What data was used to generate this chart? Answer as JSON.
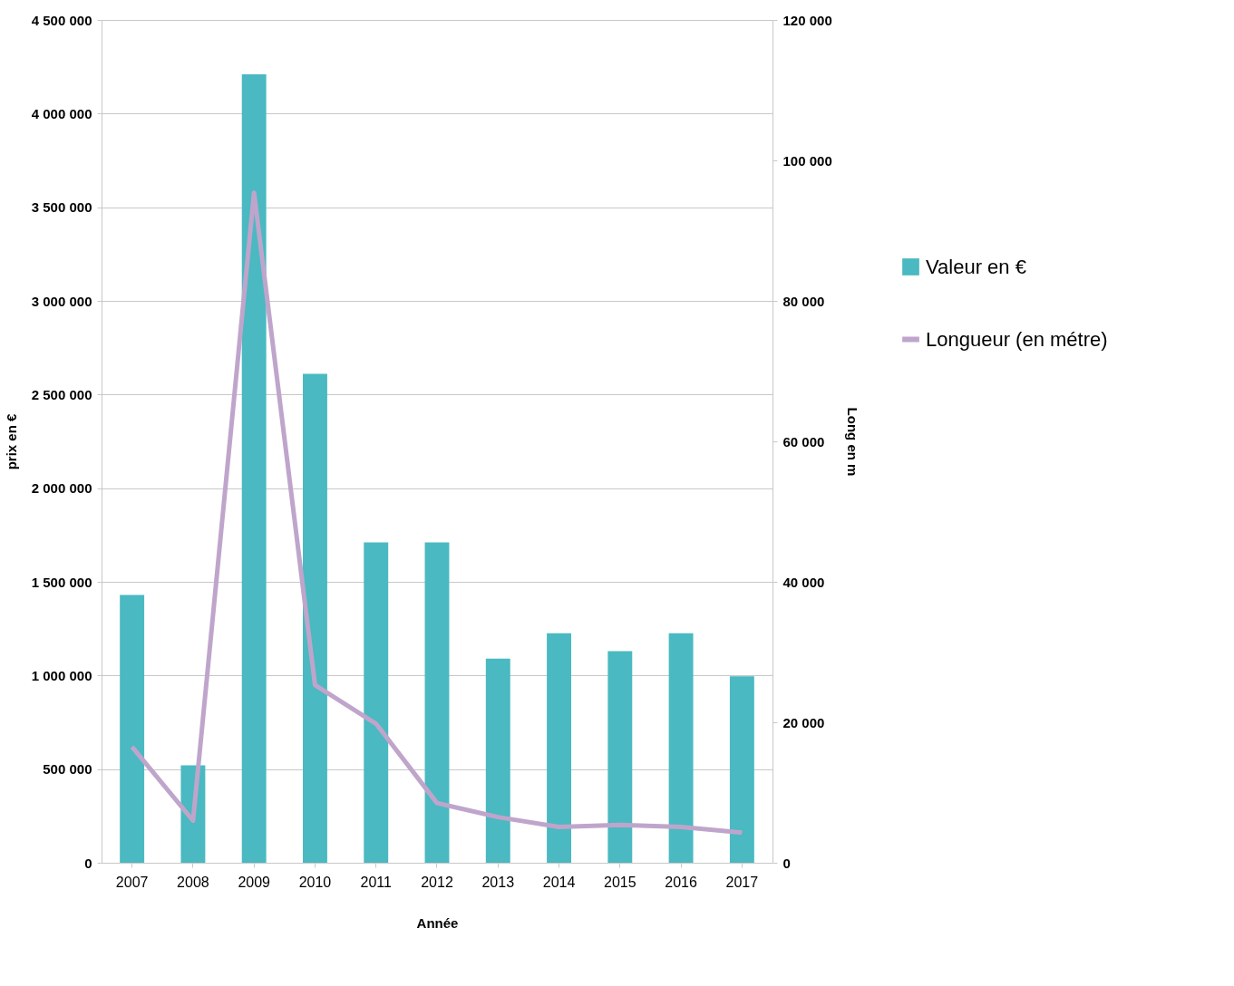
{
  "chart_data": {
    "type": "bar",
    "xlabel": "Année",
    "ylabel": "prix en €",
    "y2label": "Long en m",
    "categories": [
      "2007",
      "2008",
      "2009",
      "2010",
      "2011",
      "2012",
      "2013",
      "2014",
      "2015",
      "2016",
      "2017"
    ],
    "series": [
      {
        "name": "Valeur en €",
        "type": "bar",
        "color": "#4ab9c1",
        "values": [
          1430000,
          520000,
          4210000,
          2610000,
          1710000,
          1710000,
          1090000,
          1225000,
          1130000,
          1225000,
          995000
        ]
      },
      {
        "name": "Longueur (en métre)",
        "type": "line",
        "axis": "y2",
        "color": "#bfa5cb",
        "values": [
          16500,
          6000,
          95400,
          25300,
          19800,
          8500,
          6500,
          5100,
          5400,
          5100,
          4300
        ]
      }
    ],
    "ylim": [
      0,
      4500000
    ],
    "yticks": [
      {
        "value": 0,
        "label": "0"
      },
      {
        "value": 500000,
        "label": "500 000"
      },
      {
        "value": 1000000,
        "label": "1 000 000"
      },
      {
        "value": 1500000,
        "label": "1 500 000"
      },
      {
        "value": 2000000,
        "label": "2 000 000"
      },
      {
        "value": 2500000,
        "label": "2 500 000"
      },
      {
        "value": 3000000,
        "label": "3 000 000"
      },
      {
        "value": 3500000,
        "label": "3 500 000"
      },
      {
        "value": 4000000,
        "label": "4 000 000"
      },
      {
        "value": 4500000,
        "label": "4 500 000"
      }
    ],
    "y2lim": [
      0,
      120000
    ],
    "y2ticks": [
      {
        "value": 0,
        "label": "0"
      },
      {
        "value": 20000,
        "label": "20 000"
      },
      {
        "value": 40000,
        "label": "40 000"
      },
      {
        "value": 60000,
        "label": "60 000"
      },
      {
        "value": 80000,
        "label": "80 000"
      },
      {
        "value": 100000,
        "label": "100 000"
      },
      {
        "value": 120000,
        "label": "120 000"
      }
    ],
    "grid": "y",
    "legend": "right",
    "line_style": "solid",
    "marker": "none"
  }
}
